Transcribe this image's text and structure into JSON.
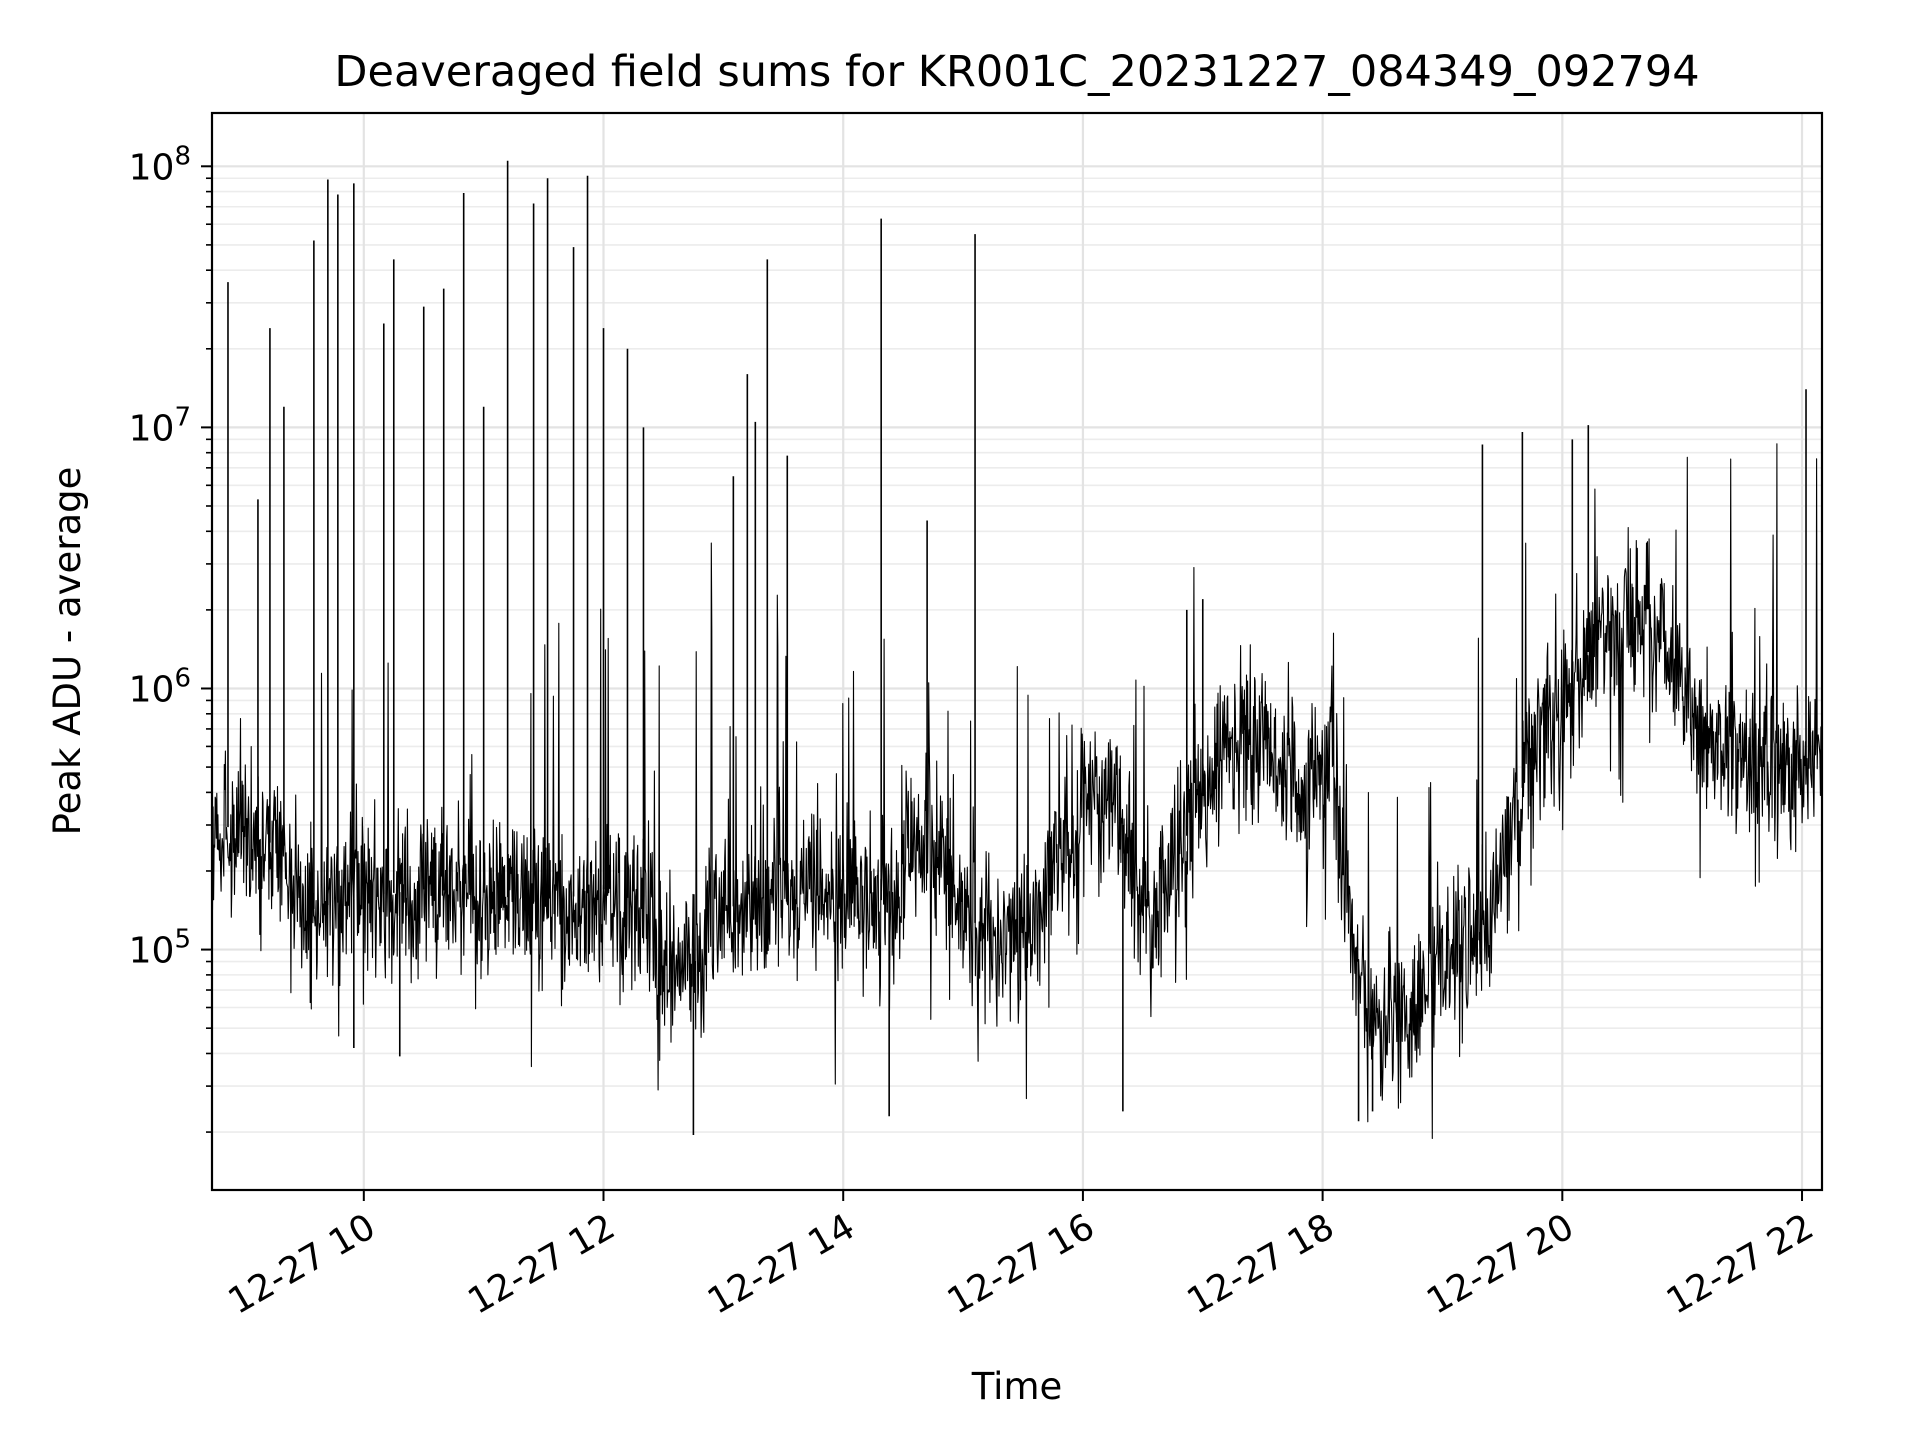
{
  "chart_data": {
    "type": "line",
    "title": "Deaveraged field sums for KR001C_20231227_084349_092794",
    "xlabel": "Time",
    "ylabel": "Peak ADU - average",
    "x_scale": "time",
    "y_scale": "log",
    "xlim": [
      "2023-12-27T08:44",
      "2023-12-27T22:10"
    ],
    "ylim": [
      12000,
      160000000
    ],
    "grid": true,
    "grid_minor": true,
    "x_ticks": [
      {
        "value": "2023-12-27T10:00",
        "label": "12-27 10"
      },
      {
        "value": "2023-12-27T12:00",
        "label": "12-27 12"
      },
      {
        "value": "2023-12-27T14:00",
        "label": "12-27 14"
      },
      {
        "value": "2023-12-27T16:00",
        "label": "12-27 16"
      },
      {
        "value": "2023-12-27T18:00",
        "label": "12-27 18"
      },
      {
        "value": "2023-12-27T20:00",
        "label": "12-27 20"
      },
      {
        "value": "2023-12-27T22:00",
        "label": "12-27 22"
      }
    ],
    "y_ticks": [
      {
        "value": 100000,
        "base": "10",
        "exp": "5"
      },
      {
        "value": 1000000,
        "base": "10",
        "exp": "6"
      },
      {
        "value": 10000000,
        "base": "10",
        "exp": "7"
      },
      {
        "value": 100000000,
        "base": "10",
        "exp": "8"
      }
    ],
    "line_color": "#000000",
    "series": [
      {
        "x": [
          "2023-12-27T08:44",
          "2023-12-27T08:55",
          "2023-12-27T09:10",
          "2023-12-27T09:20",
          "2023-12-27T09:30",
          "2023-12-27T09:45",
          "2023-12-27T10:00",
          "2023-12-27T10:30",
          "2023-12-27T11:00",
          "2023-12-27T11:30",
          "2023-12-27T12:00",
          "2023-12-27T12:20",
          "2023-12-27T12:30",
          "2023-12-27T12:45",
          "2023-12-27T13:00",
          "2023-12-27T13:15",
          "2023-12-27T13:30",
          "2023-12-27T14:00",
          "2023-12-27T14:20",
          "2023-12-27T14:30",
          "2023-12-27T14:45",
          "2023-12-27T15:00",
          "2023-12-27T15:20",
          "2023-12-27T15:30",
          "2023-12-27T15:45",
          "2023-12-27T16:00",
          "2023-12-27T16:20",
          "2023-12-27T16:35",
          "2023-12-27T16:50",
          "2023-12-27T17:10",
          "2023-12-27T17:30",
          "2023-12-27T17:50",
          "2023-12-27T18:05",
          "2023-12-27T18:15",
          "2023-12-27T18:25",
          "2023-12-27T18:45",
          "2023-12-27T19:00",
          "2023-12-27T19:10",
          "2023-12-27T19:20",
          "2023-12-27T19:30",
          "2023-12-27T19:45",
          "2023-12-27T20:00",
          "2023-12-27T20:15",
          "2023-12-27T20:30",
          "2023-12-27T20:40",
          "2023-12-27T20:50",
          "2023-12-27T21:00",
          "2023-12-27T21:20",
          "2023-12-27T21:40",
          "2023-12-27T22:00",
          "2023-12-27T22:10"
        ],
        "y": [
          280000,
          300000,
          260000,
          250000,
          140000,
          150000,
          160000,
          170000,
          165000,
          150000,
          170000,
          150000,
          90000,
          100000,
          140000,
          160000,
          150000,
          150000,
          155000,
          200000,
          300000,
          140000,
          100000,
          120000,
          200000,
          400000,
          300000,
          130000,
          250000,
          600000,
          600000,
          400000,
          550000,
          100000,
          50000,
          60000,
          80000,
          90000,
          130000,
          200000,
          600000,
          800000,
          1500000,
          1800000,
          2000000,
          1500000,
          900000,
          600000,
          450000,
          500000,
          650000
        ],
        "spikes": [
          {
            "x": "2023-12-27T08:52",
            "y": 36000000
          },
          {
            "x": "2023-12-27T09:07",
            "y": 5300000
          },
          {
            "x": "2023-12-27T09:13",
            "y": 24000000
          },
          {
            "x": "2023-12-27T09:20",
            "y": 12000000
          },
          {
            "x": "2023-12-27T09:35",
            "y": 52000000
          },
          {
            "x": "2023-12-27T09:42",
            "y": 89000000
          },
          {
            "x": "2023-12-27T09:47",
            "y": 78000000
          },
          {
            "x": "2023-12-27T09:55",
            "y": 86000000
          },
          {
            "x": "2023-12-27T10:10",
            "y": 25000000
          },
          {
            "x": "2023-12-27T10:15",
            "y": 44000000
          },
          {
            "x": "2023-12-27T10:30",
            "y": 29000000
          },
          {
            "x": "2023-12-27T10:40",
            "y": 34000000
          },
          {
            "x": "2023-12-27T10:50",
            "y": 79000000
          },
          {
            "x": "2023-12-27T11:00",
            "y": 12000000
          },
          {
            "x": "2023-12-27T11:12",
            "y": 105000000
          },
          {
            "x": "2023-12-27T11:25",
            "y": 72000000
          },
          {
            "x": "2023-12-27T11:32",
            "y": 90000000
          },
          {
            "x": "2023-12-27T11:45",
            "y": 49000000
          },
          {
            "x": "2023-12-27T11:52",
            "y": 92000000
          },
          {
            "x": "2023-12-27T12:00",
            "y": 24000000
          },
          {
            "x": "2023-12-27T12:12",
            "y": 20000000
          },
          {
            "x": "2023-12-27T12:20",
            "y": 10000000
          },
          {
            "x": "2023-12-27T13:05",
            "y": 6500000
          },
          {
            "x": "2023-12-27T13:12",
            "y": 16000000
          },
          {
            "x": "2023-12-27T13:16",
            "y": 10500000
          },
          {
            "x": "2023-12-27T13:22",
            "y": 44000000
          },
          {
            "x": "2023-12-27T13:32",
            "y": 7800000
          },
          {
            "x": "2023-12-27T14:19",
            "y": 63000000
          },
          {
            "x": "2023-12-27T14:42",
            "y": 4400000
          },
          {
            "x": "2023-12-27T15:06",
            "y": 55000000
          },
          {
            "x": "2023-12-27T16:52",
            "y": 2000000
          },
          {
            "x": "2023-12-27T17:00",
            "y": 2200000
          },
          {
            "x": "2023-12-27T19:20",
            "y": 8600000
          },
          {
            "x": "2023-12-27T19:40",
            "y": 9600000
          },
          {
            "x": "2023-12-27T20:05",
            "y": 9000000
          },
          {
            "x": "2023-12-27T20:13",
            "y": 10200000
          },
          {
            "x": "2023-12-27T22:02",
            "y": 14000000
          }
        ],
        "dips": [
          {
            "x": "2023-12-27T09:55",
            "y": 42000
          },
          {
            "x": "2023-12-27T10:18",
            "y": 39000
          },
          {
            "x": "2023-12-27T12:45",
            "y": 19500
          },
          {
            "x": "2023-12-27T14:23",
            "y": 23000
          },
          {
            "x": "2023-12-27T16:20",
            "y": 24000
          },
          {
            "x": "2023-12-27T18:18",
            "y": 22000
          },
          {
            "x": "2023-12-27T18:25",
            "y": 24000
          }
        ]
      }
    ]
  }
}
